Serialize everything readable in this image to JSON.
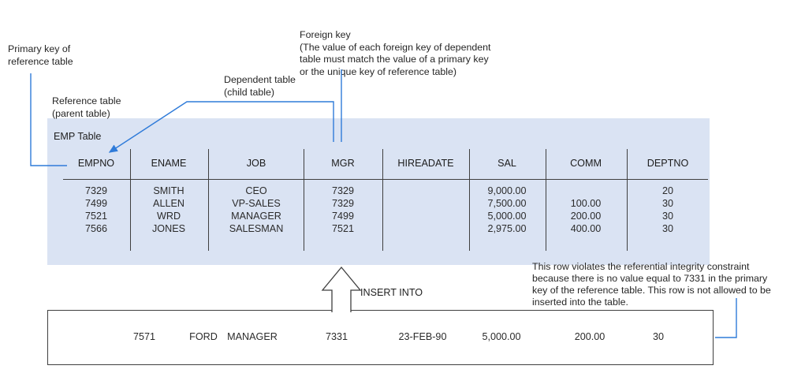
{
  "colors": {
    "connector_blue": "#2F7BD9",
    "table_band": "#DAE3F3",
    "line_ink": "#3F3F3F",
    "text": "#262626"
  },
  "notes": {
    "primary_key": {
      "lines": [
        "Primary key of",
        "reference table"
      ]
    },
    "reference_table": {
      "lines": [
        "Reference table",
        "(parent table)"
      ]
    },
    "dependent_table": {
      "lines": [
        "Dependent table",
        "(child table)"
      ]
    },
    "foreign_key": {
      "lines": [
        "Foreign key",
        "(The value of each foreign key of dependent",
        "table must match the value of a primary key",
        "or the unique key of reference table)"
      ]
    },
    "violation": {
      "lines": [
        "This row violates the referential integrity constraint",
        "because there is no value equal to 7331 in the primary",
        "key of the reference table. This row is not allowed to be",
        "inserted into the table."
      ]
    }
  },
  "emp_table": {
    "title": "EMP Table",
    "headers": [
      "EMPNO",
      "ENAME",
      "JOB",
      "MGR",
      "HIREADATE",
      "SAL",
      "COMM",
      "DEPTNO"
    ],
    "rows": [
      [
        "7329",
        "SMITH",
        "CEO",
        "7329",
        "",
        "9,000.00",
        "",
        "20"
      ],
      [
        "7499",
        "ALLEN",
        "VP-SALES",
        "7329",
        "",
        "7,500.00",
        "100.00",
        "30"
      ],
      [
        "7521",
        "WRD",
        "MANAGER",
        "7499",
        "",
        "5,000.00",
        "200.00",
        "30"
      ],
      [
        "7566",
        "JONES",
        "SALESMAN",
        "7521",
        "",
        "2,975.00",
        "400.00",
        "30"
      ]
    ]
  },
  "insert": {
    "label": "INSERT INTO",
    "row": [
      "7571",
      "FORD",
      "MANAGER",
      "7331",
      "23-FEB-90",
      "5,000.00",
      "200.00",
      "30"
    ]
  }
}
